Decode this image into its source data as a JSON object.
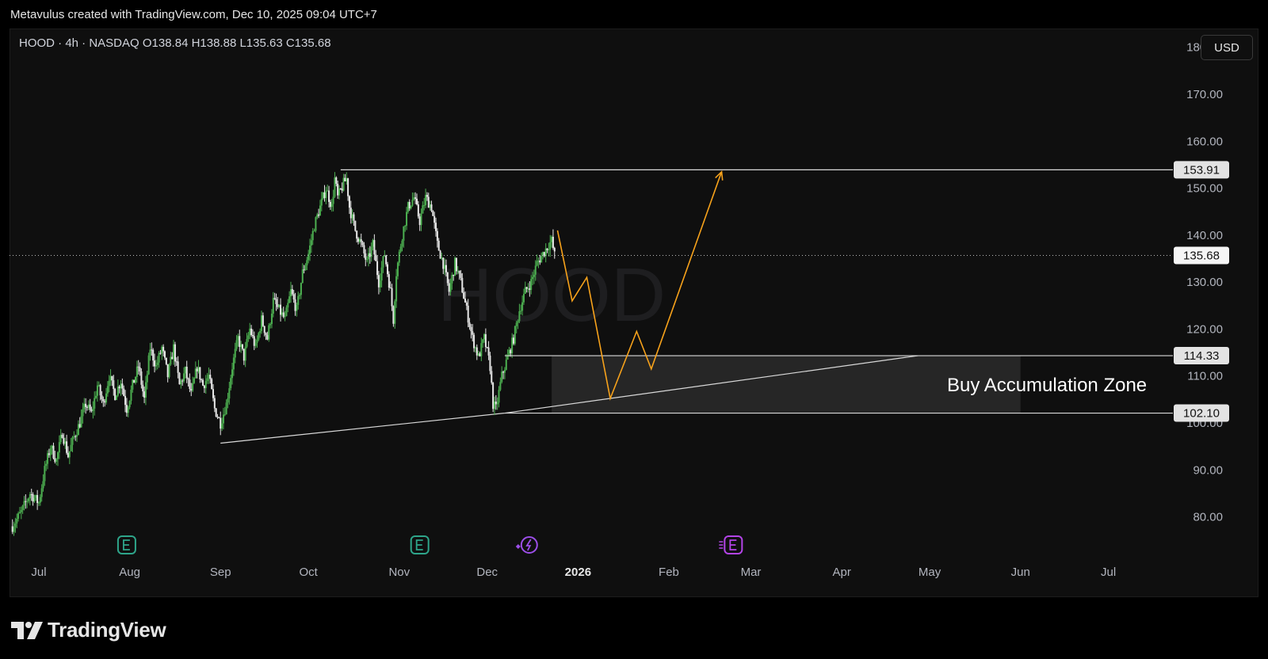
{
  "caption": "Metavulus created with TradingView.com, Dec 10, 2025 09:04 UTC+7",
  "currency": "USD",
  "brand": "TradingView",
  "watermark": "HOOD",
  "chart_data": {
    "type": "candlestick",
    "symbol": "HOOD",
    "interval": "4h",
    "exchange": "NASDAQ",
    "legend": "HOOD · 4h · NASDAQ  O138.84  H138.88  L135.63  C135.68",
    "ohlc": {
      "open": 138.84,
      "high": 138.88,
      "low": 135.63,
      "close": 135.68
    },
    "y_ticks": [
      80,
      90,
      100,
      110,
      120,
      130,
      140,
      150,
      160,
      170,
      180
    ],
    "y_tick_labels": [
      "80.00",
      "90.00",
      "100.00",
      "110.00",
      "120.00",
      "130.00",
      "140.00",
      "150.00",
      "160.00",
      "170.00",
      "180.00"
    ],
    "ylim": [
      72,
      184
    ],
    "x_labels": [
      {
        "label": "Jul",
        "day": 0
      },
      {
        "label": "Aug",
        "day": 31
      },
      {
        "label": "Sep",
        "day": 62
      },
      {
        "label": "Oct",
        "day": 92
      },
      {
        "label": "Nov",
        "day": 123
      },
      {
        "label": "Dec",
        "day": 153
      },
      {
        "label": "2026",
        "day": 184,
        "bold": true
      },
      {
        "label": "Feb",
        "day": 215
      },
      {
        "label": "Mar",
        "day": 243
      },
      {
        "label": "Apr",
        "day": 274
      },
      {
        "label": "May",
        "day": 304
      },
      {
        "label": "Jun",
        "day": 335
      },
      {
        "label": "Jul",
        "day": 365
      }
    ],
    "xlim_days": [
      -10,
      387
    ],
    "price_path": [
      [
        -9,
        78
      ],
      [
        -6,
        81
      ],
      [
        -3,
        85
      ],
      [
        0,
        83
      ],
      [
        2,
        90
      ],
      [
        4,
        95
      ],
      [
        6,
        92
      ],
      [
        8,
        98
      ],
      [
        10,
        93
      ],
      [
        12,
        97
      ],
      [
        14,
        100
      ],
      [
        16,
        104
      ],
      [
        18,
        102
      ],
      [
        20,
        108
      ],
      [
        22,
        104
      ],
      [
        24,
        110
      ],
      [
        26,
        106
      ],
      [
        28,
        109
      ],
      [
        30,
        103
      ],
      [
        32,
        108
      ],
      [
        34,
        112
      ],
      [
        36,
        105
      ],
      [
        38,
        116
      ],
      [
        40,
        112
      ],
      [
        42,
        116
      ],
      [
        44,
        110
      ],
      [
        46,
        116
      ],
      [
        48,
        108
      ],
      [
        50,
        111
      ],
      [
        52,
        106
      ],
      [
        54,
        112
      ],
      [
        56,
        108
      ],
      [
        58,
        110
      ],
      [
        60,
        103
      ],
      [
        62,
        100
      ],
      [
        64,
        104
      ],
      [
        66,
        112
      ],
      [
        68,
        118
      ],
      [
        70,
        114
      ],
      [
        72,
        120
      ],
      [
        74,
        116
      ],
      [
        76,
        122
      ],
      [
        78,
        118
      ],
      [
        80,
        126
      ],
      [
        82,
        124
      ],
      [
        84,
        122
      ],
      [
        86,
        128
      ],
      [
        88,
        124
      ],
      [
        90,
        132
      ],
      [
        92,
        136
      ],
      [
        94,
        142
      ],
      [
        96,
        146
      ],
      [
        98,
        150
      ],
      [
        100,
        146
      ],
      [
        101,
        152
      ],
      [
        102,
        148
      ],
      [
        104,
        151
      ],
      [
        105,
        152
      ],
      [
        106,
        146
      ],
      [
        108,
        141
      ],
      [
        110,
        138
      ],
      [
        112,
        134
      ],
      [
        114,
        138
      ],
      [
        116,
        130
      ],
      [
        118,
        136
      ],
      [
        120,
        128
      ],
      [
        121,
        122
      ],
      [
        122,
        132
      ],
      [
        124,
        140
      ],
      [
        126,
        146
      ],
      [
        128,
        148
      ],
      [
        130,
        143
      ],
      [
        132,
        148
      ],
      [
        134,
        146
      ],
      [
        136,
        138
      ],
      [
        138,
        134
      ],
      [
        140,
        128
      ],
      [
        142,
        134
      ],
      [
        144,
        130
      ],
      [
        146,
        124
      ],
      [
        148,
        118
      ],
      [
        150,
        114
      ],
      [
        152,
        118
      ],
      [
        154,
        112
      ],
      [
        155,
        104
      ],
      [
        156,
        103
      ],
      [
        158,
        110
      ],
      [
        160,
        114
      ],
      [
        162,
        118
      ],
      [
        164,
        124
      ],
      [
        166,
        128
      ],
      [
        168,
        130
      ],
      [
        170,
        134
      ],
      [
        172,
        136
      ],
      [
        174,
        138
      ],
      [
        175,
        138.8
      ],
      [
        176,
        135.68
      ]
    ],
    "current_price": {
      "value": 135.68,
      "label": "135.68"
    },
    "levels": [
      {
        "value": 153.91,
        "label": "153.91",
        "from_day": 103
      },
      {
        "value": 114.33,
        "label": "114.33",
        "from_day": 159
      },
      {
        "value": 102.1,
        "label": "102.10",
        "from_day": 159
      }
    ],
    "zone": {
      "label": "Buy Accumulation Zone",
      "top": 114.33,
      "bottom": 102.1,
      "from_day": 175,
      "to_day": 335
    },
    "trendline": [
      [
        62,
        95.7
      ],
      [
        159,
        102.1
      ],
      [
        300,
        114.33
      ]
    ],
    "projection": [
      [
        177,
        141
      ],
      [
        182,
        126
      ],
      [
        187,
        131
      ],
      [
        195,
        105.2
      ],
      [
        204,
        119.5
      ],
      [
        209,
        111.5
      ],
      [
        233,
        153.5
      ]
    ],
    "events": [
      {
        "day": 30,
        "type": "earnings",
        "color": "#2ea58a"
      },
      {
        "day": 130,
        "type": "earnings",
        "color": "#2ea58a"
      },
      {
        "day": 166,
        "type": "dividend",
        "color": "#9c4ee8"
      },
      {
        "day": 237,
        "type": "earnings-future",
        "color": "#b444e8"
      }
    ],
    "colors": {
      "up": "#4caf50",
      "down": "#e8e8e8",
      "projection": "#f7a21b",
      "lines": "#d9d9d9",
      "zone_fill": "#262626"
    }
  }
}
